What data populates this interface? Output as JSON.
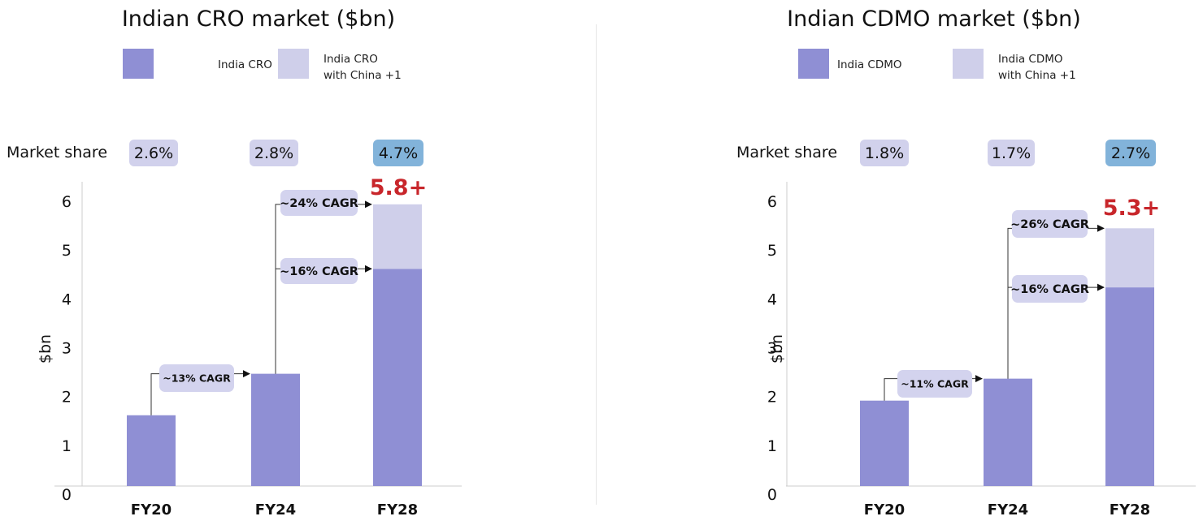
{
  "chart_data": [
    {
      "type": "bar",
      "stacked": true,
      "title": "Indian CRO market ($bn)",
      "ylabel": "$bn",
      "ylim": [
        0,
        6
      ],
      "yticks": [
        "0",
        "1",
        "2",
        "3",
        "4",
        "5",
        "6"
      ],
      "grid": false,
      "legend_placement": "top",
      "categories": [
        "FY20",
        "FY24",
        "FY28"
      ],
      "series": [
        {
          "name": "India CRO",
          "name_lines": [
            "India CRO"
          ],
          "color": "#8f8fd4",
          "values": [
            1.45,
            2.3,
            4.45
          ]
        },
        {
          "name": "India CRO with China +1",
          "name_lines": [
            "India CRO",
            "with China +1"
          ],
          "color": "#cfcfea",
          "values": [
            0,
            0,
            1.32
          ]
        }
      ],
      "market_share_label": "Market share",
      "market_share": [
        "2.6%",
        "2.8%",
        "4.7%"
      ],
      "market_share_colors": [
        "#d1d1ec",
        "#d1d1ec",
        "#82b3da"
      ],
      "total_label": "5.8+",
      "cagr": [
        {
          "label": "~13% CAGR",
          "from_category": 0,
          "to_category": 1,
          "to_value": 2.3
        },
        {
          "label": "~16% CAGR",
          "from_category": 1,
          "to_category": 2,
          "to_value": 4.45
        },
        {
          "label": "~24% CAGR",
          "from_category": 1,
          "to_category": 2,
          "to_value": 5.77
        }
      ]
    },
    {
      "type": "bar",
      "stacked": true,
      "title": "Indian CDMO market ($bn)",
      "ylabel": "$bn",
      "ylim": [
        0,
        6
      ],
      "yticks": [
        "0",
        "1",
        "2",
        "3",
        "4",
        "5",
        "6"
      ],
      "grid": false,
      "legend_placement": "top",
      "categories": [
        "FY20",
        "FY24",
        "FY28"
      ],
      "series": [
        {
          "name": "India CDMO",
          "name_lines": [
            "India CDMO"
          ],
          "color": "#8f8fd4",
          "values": [
            1.75,
            2.2,
            4.07
          ]
        },
        {
          "name": "India CDMO with China +1",
          "name_lines": [
            "India CDMO",
            "with China +1"
          ],
          "color": "#cfcfea",
          "values": [
            0,
            0,
            1.21
          ]
        }
      ],
      "market_share_label": "Market share",
      "market_share": [
        "1.8%",
        "1.7%",
        "2.7%"
      ],
      "market_share_colors": [
        "#d1d1ec",
        "#d1d1ec",
        "#82b3da"
      ],
      "total_label": "5.3+",
      "cagr": [
        {
          "label": "~11% CAGR",
          "from_category": 0,
          "to_category": 1,
          "to_value": 2.2
        },
        {
          "label": "~16% CAGR",
          "from_category": 1,
          "to_category": 2,
          "to_value": 4.07
        },
        {
          "label": "~26% CAGR",
          "from_category": 1,
          "to_category": 2,
          "to_value": 5.28
        }
      ]
    }
  ]
}
